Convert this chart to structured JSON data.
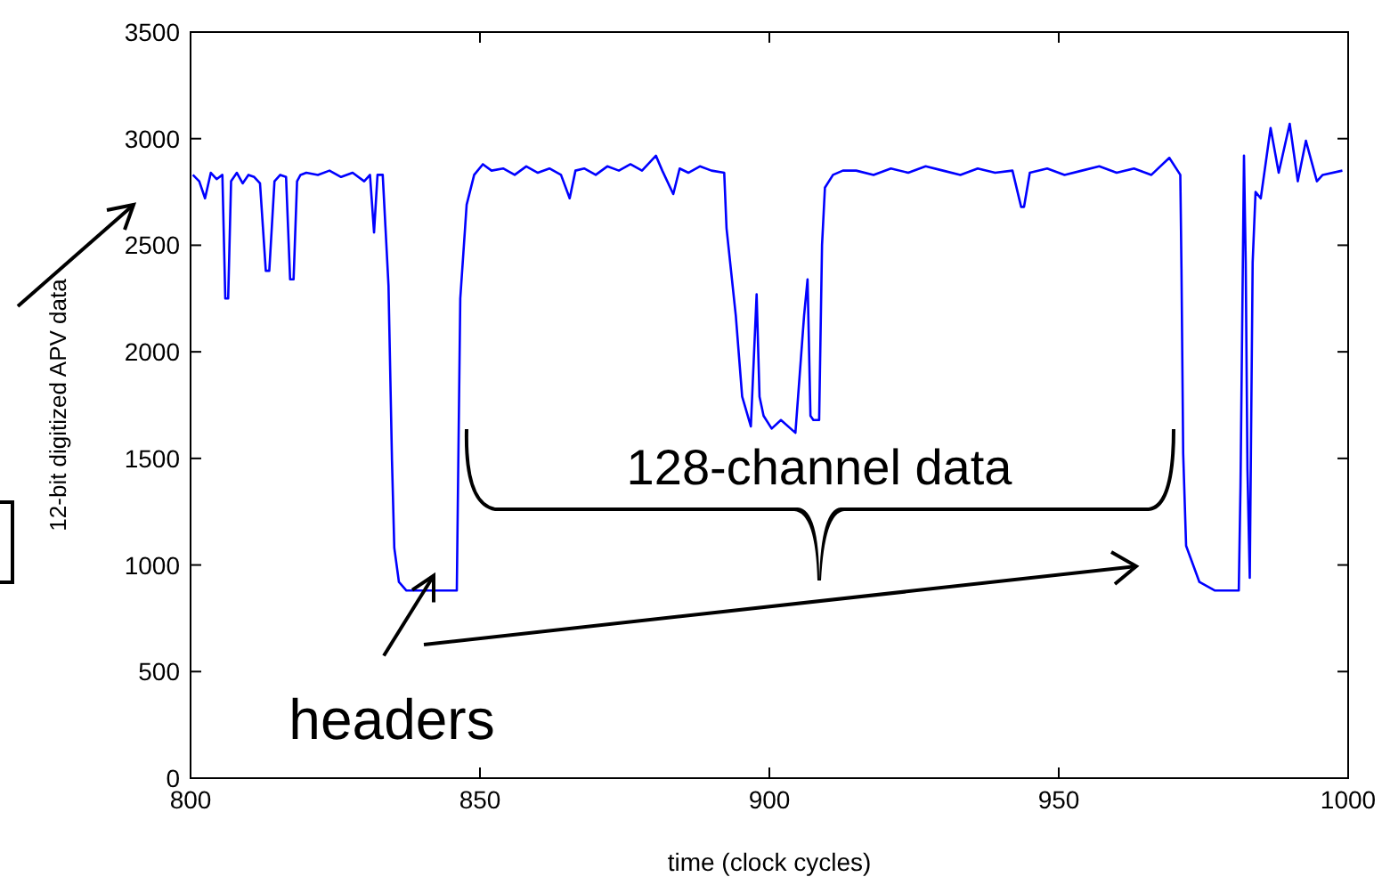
{
  "chart_data": {
    "type": "line",
    "xlabel": "time (clock cycles)",
    "ylabel": "12-bit digitized APV data",
    "xlim": [
      800,
      1000
    ],
    "xticks": [
      800,
      850,
      900,
      950,
      1000
    ],
    "ylim": [
      0,
      3500
    ],
    "yticks": [
      0,
      500,
      1000,
      1500,
      2000,
      2500,
      3000,
      3500
    ],
    "grid": false,
    "annotations": [
      "128-channel data",
      {
        "text": "headers",
        "x": 842,
        "y": 950
      }
    ],
    "series": [
      {
        "color": "#0000ff",
        "x": [
          800.4,
          801.5,
          802.5,
          803.5,
          804.5,
          805.5,
          806,
          806.5,
          807,
          808,
          809,
          810,
          811,
          812,
          813,
          813.6,
          814.5,
          815.5,
          816.5,
          817.2,
          817.8,
          818.4,
          819,
          820,
          822,
          824,
          826,
          828,
          830,
          831,
          831.7,
          832.3,
          833.2,
          834.2,
          834.8,
          835.2,
          836,
          837.3,
          840,
          843,
          846,
          846.2,
          846.6,
          847.7,
          849,
          850.5,
          852,
          854,
          856,
          858,
          860,
          862,
          864,
          865.5,
          866.5,
          868,
          870,
          872,
          874,
          876,
          878,
          880.4,
          881.5,
          883.4,
          884.5,
          886,
          888,
          890,
          892.2,
          892.6,
          894.2,
          895.3,
          896.8,
          897.8,
          898.3,
          899,
          900.4,
          902,
          904.5,
          906,
          906.6,
          907.1,
          907.6,
          908.6,
          909.1,
          909.6,
          911,
          912.7,
          915,
          918,
          921,
          924,
          927,
          930,
          933,
          936,
          939,
          942,
          943.5,
          944,
          945,
          948,
          951,
          954,
          957,
          960,
          963,
          966,
          969.1,
          971,
          971.2,
          971.5,
          972,
          974.3,
          977,
          981.1,
          981.4,
          982,
          982.3,
          982.6,
          983,
          983.5,
          984,
          984.9,
          986.6,
          988,
          989.9,
          991.3,
          992.7,
          994.6,
          995.6,
          999
        ],
        "values": [
          2830,
          2800,
          2720,
          2840,
          2810,
          2830,
          2250,
          2250,
          2800,
          2840,
          2790,
          2830,
          2820,
          2790,
          2380,
          2380,
          2800,
          2830,
          2820,
          2340,
          2340,
          2800,
          2830,
          2840,
          2830,
          2850,
          2820,
          2840,
          2800,
          2830,
          2560,
          2830,
          2830,
          2310,
          1490,
          1080,
          920,
          880,
          880,
          880,
          880,
          1350,
          2250,
          2690,
          2830,
          2880,
          2850,
          2860,
          2830,
          2870,
          2840,
          2860,
          2830,
          2720,
          2850,
          2860,
          2830,
          2870,
          2850,
          2880,
          2850,
          2920,
          2850,
          2740,
          2860,
          2840,
          2870,
          2850,
          2840,
          2580,
          2170,
          1790,
          1650,
          2270,
          1790,
          1700,
          1640,
          1680,
          1620,
          2170,
          2340,
          1700,
          1680,
          1680,
          2500,
          2770,
          2830,
          2850,
          2850,
          2830,
          2860,
          2840,
          2870,
          2850,
          2830,
          2860,
          2840,
          2850,
          2680,
          2680,
          2840,
          2860,
          2830,
          2850,
          2870,
          2840,
          2860,
          2830,
          2910,
          2830,
          2390,
          1520,
          1090,
          920,
          880,
          880,
          1370,
          2920,
          2420,
          1450,
          940,
          2420,
          2750,
          2720,
          3050,
          2840,
          3070,
          2800,
          2990,
          2800,
          2830,
          2850
        ]
      }
    ]
  }
}
